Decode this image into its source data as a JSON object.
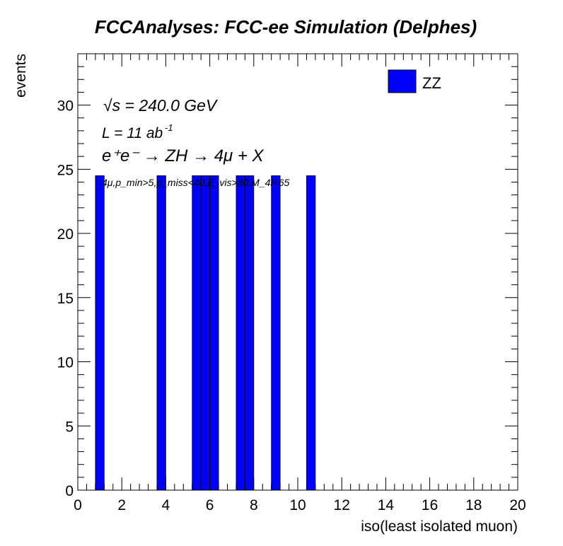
{
  "chart_data": {
    "type": "bar",
    "title": "FCCAnalyses: FCC-ee Simulation (Delphes)",
    "xlabel": "iso(least isolated muon)",
    "ylabel": "events",
    "xlim": [
      0,
      20
    ],
    "ylim": [
      0,
      34
    ],
    "x_ticks": [
      "0",
      "2",
      "4",
      "6",
      "8",
      "10",
      "12",
      "14",
      "16",
      "18",
      "20"
    ],
    "y_ticks": [
      "0",
      "5",
      "10",
      "15",
      "20",
      "25",
      "30"
    ],
    "x_tick_values": [
      0,
      2,
      4,
      6,
      8,
      10,
      12,
      14,
      16,
      18,
      20
    ],
    "y_tick_values": [
      0,
      5,
      10,
      15,
      20,
      25,
      30
    ],
    "bin_width": 0.4,
    "series": [
      {
        "name": "ZZ",
        "color": "#0000ff",
        "bins": [
          {
            "x_low": 0.8,
            "x_high": 1.2,
            "value": 24.5
          },
          {
            "x_low": 3.6,
            "x_high": 4.0,
            "value": 24.5
          },
          {
            "x_low": 5.2,
            "x_high": 5.6,
            "value": 24.5
          },
          {
            "x_low": 5.6,
            "x_high": 6.0,
            "value": 24.5
          },
          {
            "x_low": 6.0,
            "x_high": 6.4,
            "value": 24.5
          },
          {
            "x_low": 7.2,
            "x_high": 7.6,
            "value": 24.5
          },
          {
            "x_low": 7.6,
            "x_high": 8.0,
            "value": 24.5
          },
          {
            "x_low": 8.8,
            "x_high": 9.2,
            "value": 24.5
          },
          {
            "x_low": 10.4,
            "x_high": 10.8,
            "value": 24.5
          }
        ]
      }
    ],
    "legend": {
      "position": "top-right",
      "entries": [
        "ZZ"
      ]
    },
    "annotations": {
      "sqrt_s": "√s = 240.0 GeV",
      "lumi": "L = 11 ab",
      "lumi_exp": "-1",
      "process": "e⁺e⁻ → ZH → 4μ + X",
      "selection": "4μ,p_min>5,p_miss<40,E_vis>80,M_4l<65"
    },
    "grid": false
  }
}
